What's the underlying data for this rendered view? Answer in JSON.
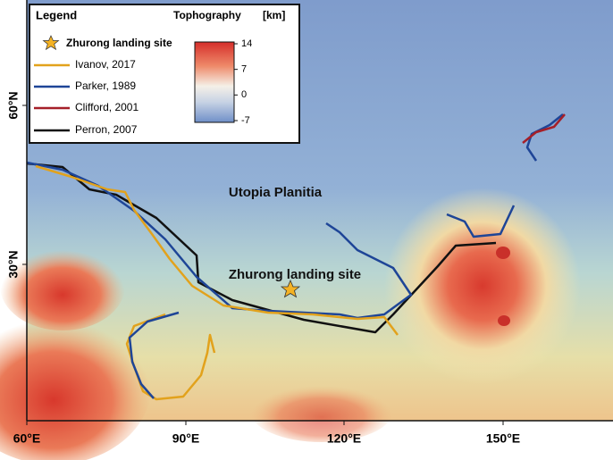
{
  "legend": {
    "title": "Legend",
    "colorbar_title": "Tophography",
    "colorbar_unit": "[km]",
    "entries": [
      "Zhurong landing site",
      "Ivanov, 2017",
      "Parker, 1989",
      "Clifford, 2001",
      "Perron, 2007"
    ],
    "colorbar_ticks": [
      14,
      7,
      0,
      -7
    ]
  },
  "axes": {
    "latitude_labels": [
      "60°N",
      "30°N"
    ],
    "longitude_labels": [
      "60°E",
      "90°E",
      "120°E",
      "150°E"
    ]
  },
  "annotations": [
    "Utopia Planitia",
    "Zhurong landing site"
  ]
}
